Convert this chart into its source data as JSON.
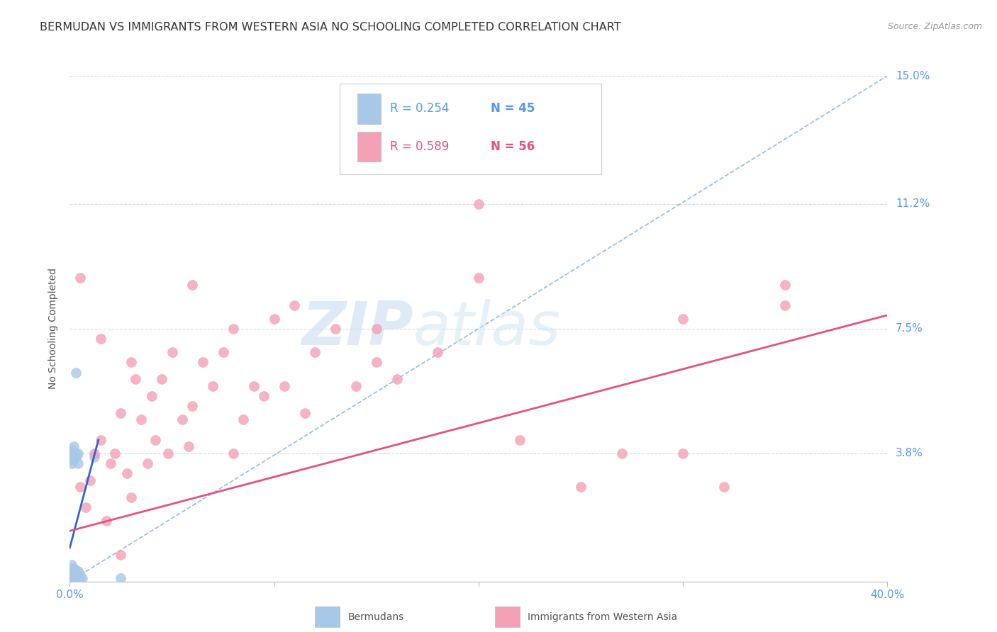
{
  "title": "BERMUDAN VS IMMIGRANTS FROM WESTERN ASIA NO SCHOOLING COMPLETED CORRELATION CHART",
  "source": "Source: ZipAtlas.com",
  "ylabel": "No Schooling Completed",
  "xlim": [
    0.0,
    0.4
  ],
  "ylim": [
    0.0,
    0.15
  ],
  "xticks": [
    0.0,
    0.1,
    0.2,
    0.3,
    0.4
  ],
  "xticklabels": [
    "0.0%",
    "",
    "",
    "",
    "40.0%"
  ],
  "ytick_vals": [
    0.0,
    0.038,
    0.075,
    0.112,
    0.15
  ],
  "ytick_labels": [
    "",
    "3.8%",
    "7.5%",
    "11.2%",
    "15.0%"
  ],
  "bermudans_color": "#a8c8e8",
  "immigrants_color": "#f4a0b5",
  "line_blue_color": "#3366cc",
  "line_pink_color": "#e85080",
  "diagonal_color": "#99bbdd",
  "watermark_zip": "ZIP",
  "watermark_atlas": "atlas",
  "title_fontsize": 11.5,
  "source_fontsize": 9,
  "tick_fontsize": 11,
  "legend_fontsize": 12,
  "bermudans_x": [
    0.001,
    0.001,
    0.001,
    0.001,
    0.001,
    0.002,
    0.002,
    0.002,
    0.002,
    0.002,
    0.003,
    0.003,
    0.003,
    0.003,
    0.004,
    0.004,
    0.004,
    0.005,
    0.005,
    0.006,
    0.001,
    0.001,
    0.002,
    0.002,
    0.003,
    0.003,
    0.004,
    0.001,
    0.002,
    0.001,
    0.001,
    0.002,
    0.002,
    0.001,
    0.003,
    0.001,
    0.002,
    0.001,
    0.001,
    0.002,
    0.003,
    0.002,
    0.004,
    0.012,
    0.025
  ],
  "bermudans_y": [
    0.001,
    0.002,
    0.001,
    0.002,
    0.003,
    0.001,
    0.002,
    0.003,
    0.004,
    0.002,
    0.001,
    0.002,
    0.003,
    0.001,
    0.002,
    0.001,
    0.003,
    0.001,
    0.002,
    0.001,
    0.035,
    0.036,
    0.036,
    0.037,
    0.037,
    0.038,
    0.038,
    0.039,
    0.04,
    0.038,
    0.001,
    0.001,
    0.001,
    0.003,
    0.002,
    0.004,
    0.001,
    0.005,
    0.0,
    0.001,
    0.062,
    0.036,
    0.035,
    0.037,
    0.001
  ],
  "immigrants_x": [
    0.005,
    0.008,
    0.01,
    0.012,
    0.015,
    0.018,
    0.02,
    0.022,
    0.025,
    0.028,
    0.03,
    0.032,
    0.035,
    0.038,
    0.04,
    0.042,
    0.045,
    0.048,
    0.05,
    0.055,
    0.058,
    0.06,
    0.065,
    0.07,
    0.075,
    0.08,
    0.085,
    0.09,
    0.095,
    0.1,
    0.105,
    0.11,
    0.115,
    0.12,
    0.13,
    0.14,
    0.15,
    0.16,
    0.18,
    0.2,
    0.22,
    0.25,
    0.27,
    0.3,
    0.32,
    0.35,
    0.005,
    0.015,
    0.025,
    0.2,
    0.3,
    0.35,
    0.15,
    0.06,
    0.03,
    0.08
  ],
  "immigrants_y": [
    0.028,
    0.022,
    0.03,
    0.038,
    0.042,
    0.018,
    0.035,
    0.038,
    0.05,
    0.032,
    0.025,
    0.06,
    0.048,
    0.035,
    0.055,
    0.042,
    0.06,
    0.038,
    0.068,
    0.048,
    0.04,
    0.052,
    0.065,
    0.058,
    0.068,
    0.075,
    0.048,
    0.058,
    0.055,
    0.078,
    0.058,
    0.082,
    0.05,
    0.068,
    0.075,
    0.058,
    0.065,
    0.06,
    0.068,
    0.112,
    0.042,
    0.028,
    0.038,
    0.078,
    0.028,
    0.082,
    0.09,
    0.072,
    0.008,
    0.09,
    0.038,
    0.088,
    0.075,
    0.088,
    0.065,
    0.038
  ],
  "pink_line_x0": 0.0,
  "pink_line_y0": 0.015,
  "pink_line_x1": 0.4,
  "pink_line_y1": 0.079,
  "blue_line_x0": 0.0,
  "blue_line_y0": 0.01,
  "blue_line_x1": 0.014,
  "blue_line_y1": 0.042
}
